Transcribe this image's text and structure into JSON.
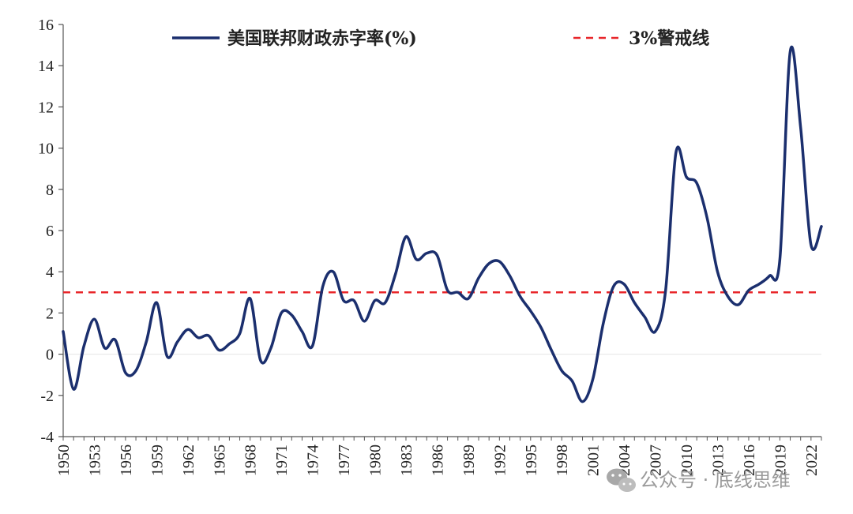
{
  "chart_data": {
    "type": "line",
    "title": "",
    "xlabel": "",
    "ylabel": "",
    "ylim": [
      -4,
      16
    ],
    "yticks": [
      -4,
      -2,
      0,
      2,
      4,
      6,
      8,
      10,
      12,
      14,
      16
    ],
    "xticks": [
      1950,
      1953,
      1956,
      1959,
      1962,
      1965,
      1968,
      1971,
      1974,
      1977,
      1980,
      1983,
      1986,
      1989,
      1992,
      1995,
      1998,
      2001,
      2004,
      2007,
      2010,
      2013,
      2016,
      2019,
      2022
    ],
    "x": [
      1950,
      1951,
      1952,
      1953,
      1954,
      1955,
      1956,
      1957,
      1958,
      1959,
      1960,
      1961,
      1962,
      1963,
      1964,
      1965,
      1966,
      1967,
      1968,
      1969,
      1970,
      1971,
      1972,
      1973,
      1974,
      1975,
      1976,
      1977,
      1978,
      1979,
      1980,
      1981,
      1982,
      1983,
      1984,
      1985,
      1986,
      1987,
      1988,
      1989,
      1990,
      1991,
      1992,
      1993,
      1994,
      1995,
      1996,
      1997,
      1998,
      1999,
      2000,
      2001,
      2002,
      2003,
      2004,
      2005,
      2006,
      2007,
      2008,
      2009,
      2010,
      2011,
      2012,
      2013,
      2014,
      2015,
      2016,
      2017,
      2018,
      2019,
      2020,
      2021,
      2022,
      2023
    ],
    "series": [
      {
        "name": "美国联邦财政赤字率(%)",
        "color": "#1b2f6e",
        "style": "solid",
        "values": [
          1.1,
          -1.7,
          0.4,
          1.7,
          0.3,
          0.7,
          -0.9,
          -0.8,
          0.6,
          2.5,
          -0.1,
          0.6,
          1.2,
          0.8,
          0.9,
          0.2,
          0.5,
          1.0,
          2.7,
          -0.3,
          0.3,
          2.0,
          1.9,
          1.1,
          0.4,
          3.3,
          4.0,
          2.6,
          2.6,
          1.6,
          2.6,
          2.5,
          3.9,
          5.7,
          4.6,
          4.9,
          4.8,
          3.1,
          3.0,
          2.7,
          3.7,
          4.4,
          4.5,
          3.8,
          2.8,
          2.1,
          1.3,
          0.2,
          -0.8,
          -1.3,
          -2.3,
          -1.2,
          1.5,
          3.3,
          3.4,
          2.5,
          1.8,
          1.1,
          3.1,
          9.8,
          8.6,
          8.3,
          6.6,
          4.0,
          2.8,
          2.4,
          3.1,
          3.4,
          3.8,
          4.6,
          14.7,
          11.0,
          5.3,
          6.2
        ]
      },
      {
        "name": "3%警戒线",
        "color": "#e8262a",
        "style": "dashed",
        "value": 3
      }
    ],
    "legend": "top",
    "grid": false
  },
  "watermark": {
    "icon": "wechat-icon",
    "text": "公众号 · 底线思维"
  }
}
